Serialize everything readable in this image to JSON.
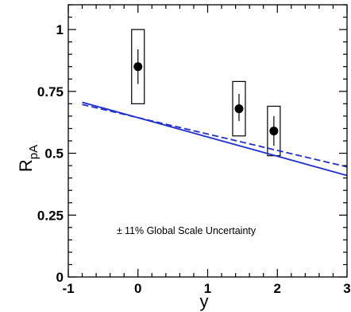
{
  "chart_data": {
    "type": "scatter",
    "xlabel": "y",
    "ylabel": "R",
    "ylabel_sub": "pA",
    "xlim": [
      -1,
      3
    ],
    "ylim": [
      0,
      1.1
    ],
    "x_ticks": [
      "-1",
      "0",
      "1",
      "2",
      "3"
    ],
    "y_ticks": [
      "0",
      "0.25",
      "0.5",
      "0.75",
      "1"
    ],
    "series": [
      {
        "kind": "points",
        "color": "#000000",
        "points": [
          {
            "x": 0.0,
            "y": 0.85,
            "stat_low": 0.78,
            "stat_high": 0.92,
            "sys_low": 0.7,
            "sys_high": 1.0
          },
          {
            "x": 1.45,
            "y": 0.68,
            "stat_low": 0.63,
            "stat_high": 0.74,
            "sys_low": 0.57,
            "sys_high": 0.79
          },
          {
            "x": 1.95,
            "y": 0.59,
            "stat_low": 0.53,
            "stat_high": 0.65,
            "sys_low": 0.49,
            "sys_high": 0.69
          }
        ]
      },
      {
        "kind": "line",
        "style": "solid",
        "color": "#1f2fd6",
        "x": [
          -0.8,
          3.0
        ],
        "y": [
          0.706,
          0.41
        ]
      },
      {
        "kind": "line",
        "style": "dashed",
        "color": "#1f2fd6",
        "x": [
          -0.8,
          3.0
        ],
        "y": [
          0.697,
          0.445
        ]
      }
    ],
    "annotations": [
      {
        "text": "11% Global Scale Uncertainty",
        "prefix": "±"
      }
    ],
    "grid": false,
    "legend": "none"
  }
}
